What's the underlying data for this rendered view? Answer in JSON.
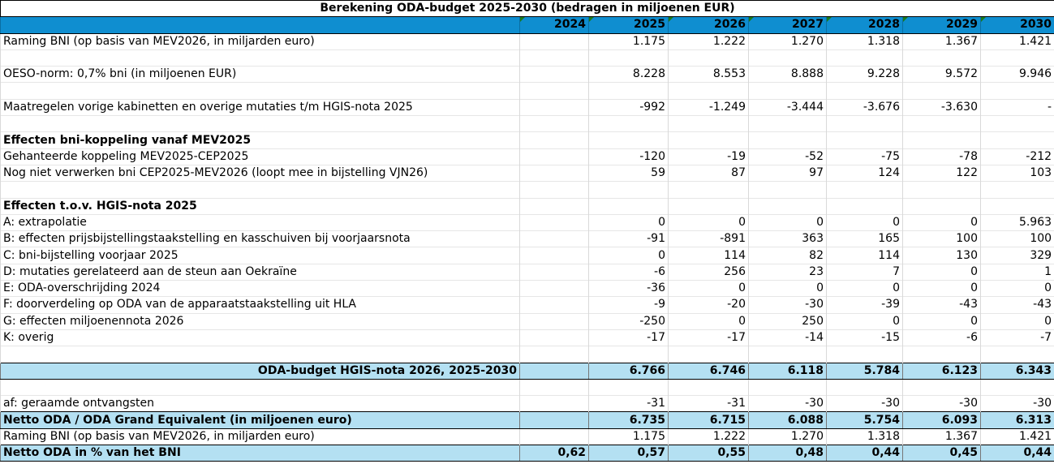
{
  "title": "Berekening ODA-budget 2025-2030 (bedragen in miljoenen EUR)",
  "years": [
    "2024",
    "2025",
    "2026",
    "2027",
    "2028",
    "2029",
    "2030"
  ],
  "rows": [
    {
      "label": "Raming BNI (op basis van MEV2026, in miljarden euro)",
      "values": [
        "",
        "1.175",
        "1.222",
        "1.270",
        "1.318",
        "1.367",
        "1.421"
      ]
    },
    {
      "label": "",
      "values": [
        "",
        "",
        "",
        "",
        "",
        "",
        ""
      ]
    },
    {
      "label": "OESO-norm: 0,7% bni (in miljoenen EUR)",
      "values": [
        "",
        "8.228",
        "8.553",
        "8.888",
        "9.228",
        "9.572",
        "9.946"
      ]
    },
    {
      "label": "",
      "values": [
        "",
        "",
        "",
        "",
        "",
        "",
        ""
      ]
    },
    {
      "label": "Maatregelen vorige kabinetten en overige mutaties t/m HGIS-nota 2025",
      "values": [
        "",
        "-992",
        "-1.249",
        "-3.444",
        "-3.676",
        "-3.630",
        "-"
      ]
    },
    {
      "label": "",
      "values": [
        "",
        "",
        "",
        "",
        "",
        "",
        ""
      ]
    },
    {
      "label": "Effecten bni-koppeling vanaf MEV2025",
      "style": "bold",
      "values": [
        "",
        "",
        "",
        "",
        "",
        "",
        ""
      ]
    },
    {
      "label": "Gehanteerde koppeling MEV2025-CEP2025",
      "values": [
        "",
        "-120",
        "-19",
        "-52",
        "-75",
        "-78",
        "-212"
      ]
    },
    {
      "label": "Nog niet verwerken bni CEP2025-MEV2026 (loopt mee in bijstelling VJN26)",
      "values": [
        "",
        "59",
        "87",
        "97",
        "124",
        "122",
        "103"
      ]
    },
    {
      "label": "",
      "values": [
        "",
        "",
        "",
        "",
        "",
        "",
        ""
      ]
    },
    {
      "label": "Effecten t.o.v. HGIS-nota 2025",
      "style": "bold",
      "values": [
        "",
        "",
        "",
        "",
        "",
        "",
        ""
      ]
    },
    {
      "label": "A: extrapolatie",
      "values": [
        "",
        "0",
        "0",
        "0",
        "0",
        "0",
        "5.963"
      ]
    },
    {
      "label": "B: effecten prijsbijstellingstaakstelling en kasschuiven bij voorjaarsnota",
      "values": [
        "",
        "-91",
        "-891",
        "363",
        "165",
        "100",
        "100"
      ]
    },
    {
      "label": "C: bni-bijstelling voorjaar 2025",
      "values": [
        "",
        "0",
        "114",
        "82",
        "114",
        "130",
        "329"
      ]
    },
    {
      "label": "D: mutaties gerelateerd aan de steun aan Oekraïne",
      "values": [
        "",
        "-6",
        "256",
        "23",
        "7",
        "0",
        "1"
      ]
    },
    {
      "label": "E: ODA-overschrijding 2024",
      "values": [
        "",
        "-36",
        "0",
        "0",
        "0",
        "0",
        "0"
      ]
    },
    {
      "label": "F: doorverdeling op ODA van de apparaatstaakstelling uit HLA",
      "values": [
        "",
        "-9",
        "-20",
        "-30",
        "-39",
        "-43",
        "-43"
      ]
    },
    {
      "label": "G: effecten miljoenennota 2026",
      "values": [
        "",
        "-250",
        "0",
        "250",
        "0",
        "0",
        "0"
      ]
    },
    {
      "label": "K: overig",
      "values": [
        "",
        "-17",
        "-17",
        "-14",
        "-15",
        "-6",
        "-7"
      ]
    },
    {
      "label": "",
      "values": [
        "",
        "",
        "",
        "",
        "",
        "",
        ""
      ]
    },
    {
      "label": "ODA-budget HGIS-nota 2026, 2025-2030",
      "style": "hl total",
      "values": [
        "",
        "6.766",
        "6.746",
        "6.118",
        "5.784",
        "6.123",
        "6.343"
      ]
    },
    {
      "label": "",
      "values": [
        "",
        "",
        "",
        "",
        "",
        "",
        ""
      ]
    },
    {
      "label": "af: geraamde ontvangsten",
      "values": [
        "",
        "-31",
        "-31",
        "-30",
        "-30",
        "-30",
        "-30"
      ]
    },
    {
      "label": "Netto ODA / ODA Grand Equivalent (in miljoenen euro)",
      "style": "hl",
      "values": [
        "",
        "6.735",
        "6.715",
        "6.088",
        "5.754",
        "6.093",
        "6.313"
      ]
    },
    {
      "label": "Raming BNI (op basis van MEV2026, in miljarden euro)",
      "values": [
        "",
        "1.175",
        "1.222",
        "1.270",
        "1.318",
        "1.367",
        "1.421"
      ]
    },
    {
      "label": "Netto ODA in % van het BNI",
      "style": "hl",
      "values": [
        "0,62",
        "0,57",
        "0,55",
        "0,48",
        "0,44",
        "0,45",
        "0,44"
      ]
    }
  ]
}
